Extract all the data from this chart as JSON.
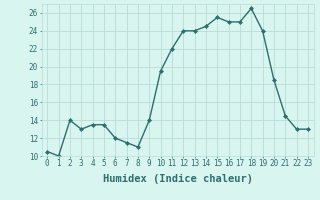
{
  "x": [
    0,
    1,
    2,
    3,
    4,
    5,
    6,
    7,
    8,
    9,
    10,
    11,
    12,
    13,
    14,
    15,
    16,
    17,
    18,
    19,
    20,
    21,
    22,
    23
  ],
  "y": [
    10.5,
    10.0,
    14.0,
    13.0,
    13.5,
    13.5,
    12.0,
    11.5,
    11.0,
    14.0,
    19.5,
    22.0,
    24.0,
    24.0,
    24.5,
    25.5,
    25.0,
    25.0,
    26.5,
    24.0,
    18.5,
    14.5,
    13.0,
    13.0
  ],
  "line_color": "#2d6e6e",
  "marker": "D",
  "marker_size": 2,
  "line_width": 1.0,
  "bg_color": "#d9f5f0",
  "grid_color": "#b8ddd8",
  "xlabel": "Humidex (Indice chaleur)",
  "xlabel_fontsize": 7.5,
  "xlabel_color": "#2d6e6e",
  "tick_color": "#2d6e6e",
  "ylim": [
    10,
    27
  ],
  "yticks": [
    10,
    12,
    14,
    16,
    18,
    20,
    22,
    24,
    26
  ],
  "xticks": [
    0,
    1,
    2,
    3,
    4,
    5,
    6,
    7,
    8,
    9,
    10,
    11,
    12,
    13,
    14,
    15,
    16,
    17,
    18,
    19,
    20,
    21,
    22,
    23
  ],
  "xtick_labels": [
    "0",
    "1",
    "2",
    "3",
    "4",
    "5",
    "6",
    "7",
    "8",
    "9",
    "10",
    "11",
    "12",
    "13",
    "14",
    "15",
    "16",
    "17",
    "18",
    "19",
    "20",
    "21",
    "22",
    "23"
  ]
}
